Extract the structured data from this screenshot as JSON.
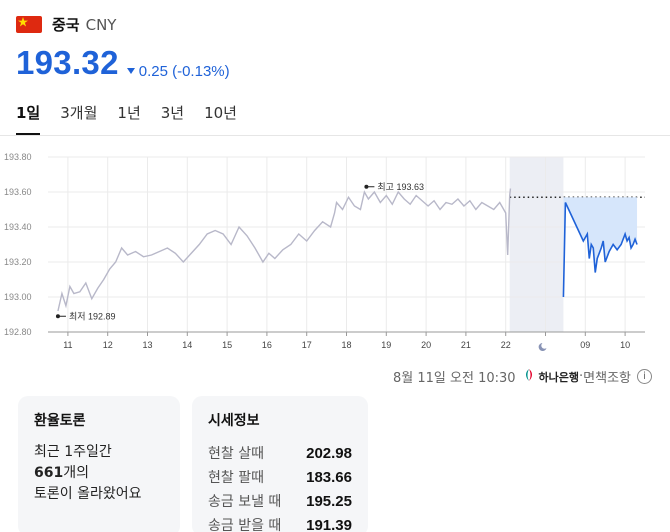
{
  "header": {
    "flag_icon": "china-flag-icon",
    "name": "중국",
    "code": "CNY"
  },
  "price": {
    "value": "193.32",
    "direction": "down",
    "change": "0.25 (-0.13%)",
    "color": "#1f62d8"
  },
  "tabs": [
    {
      "label": "1일",
      "active": true
    },
    {
      "label": "3개월",
      "active": false
    },
    {
      "label": "1년",
      "active": false
    },
    {
      "label": "3년",
      "active": false
    },
    {
      "label": "10년",
      "active": false
    }
  ],
  "chart_data": {
    "type": "line",
    "x_tick_labels": [
      "11",
      "12",
      "13",
      "14",
      "15",
      "16",
      "17",
      "18",
      "19",
      "20",
      "21",
      "22",
      "moon-icon",
      "09",
      "10"
    ],
    "y_tick_labels": [
      "193.80",
      "193.60",
      "193.40",
      "193.20",
      "193.00",
      "192.80"
    ],
    "ylim": [
      192.8,
      193.8
    ],
    "grid": true,
    "series": [
      {
        "color": "#b8b8c9",
        "points": [
          [
            10.75,
            192.92
          ],
          [
            10.85,
            193.02
          ],
          [
            10.95,
            192.95
          ],
          [
            11.05,
            193.06
          ],
          [
            11.15,
            193.02
          ],
          [
            11.3,
            193.03
          ],
          [
            11.45,
            193.08
          ],
          [
            11.6,
            192.99
          ],
          [
            11.75,
            193.05
          ],
          [
            11.9,
            193.1
          ],
          [
            12.05,
            193.16
          ],
          [
            12.2,
            193.2
          ],
          [
            12.35,
            193.28
          ],
          [
            12.5,
            193.24
          ],
          [
            12.7,
            193.26
          ],
          [
            12.9,
            193.23
          ],
          [
            13.1,
            193.24
          ],
          [
            13.3,
            193.26
          ],
          [
            13.5,
            193.28
          ],
          [
            13.7,
            193.25
          ],
          [
            13.9,
            193.2
          ],
          [
            14.1,
            193.25
          ],
          [
            14.3,
            193.3
          ],
          [
            14.5,
            193.36
          ],
          [
            14.7,
            193.38
          ],
          [
            14.9,
            193.36
          ],
          [
            15.1,
            193.3
          ],
          [
            15.3,
            193.4
          ],
          [
            15.5,
            193.35
          ],
          [
            15.7,
            193.28
          ],
          [
            15.9,
            193.2
          ],
          [
            16.05,
            193.25
          ],
          [
            16.2,
            193.22
          ],
          [
            16.4,
            193.27
          ],
          [
            16.6,
            193.3
          ],
          [
            16.8,
            193.36
          ],
          [
            17.0,
            193.32
          ],
          [
            17.2,
            193.38
          ],
          [
            17.4,
            193.43
          ],
          [
            17.6,
            193.4
          ],
          [
            17.7,
            193.48
          ],
          [
            17.75,
            193.54
          ],
          [
            17.9,
            193.5
          ],
          [
            18.05,
            193.57
          ],
          [
            18.2,
            193.52
          ],
          [
            18.35,
            193.5
          ],
          [
            18.45,
            193.6
          ],
          [
            18.55,
            193.56
          ],
          [
            18.7,
            193.6
          ],
          [
            18.85,
            193.54
          ],
          [
            19.0,
            193.58
          ],
          [
            19.15,
            193.53
          ],
          [
            19.3,
            193.6
          ],
          [
            19.45,
            193.56
          ],
          [
            19.6,
            193.53
          ],
          [
            19.75,
            193.58
          ],
          [
            19.9,
            193.55
          ],
          [
            20.05,
            193.52
          ],
          [
            20.2,
            193.55
          ],
          [
            20.35,
            193.5
          ],
          [
            20.5,
            193.54
          ],
          [
            20.65,
            193.53
          ],
          [
            20.8,
            193.56
          ],
          [
            20.95,
            193.52
          ],
          [
            21.1,
            193.55
          ],
          [
            21.25,
            193.5
          ],
          [
            21.4,
            193.54
          ],
          [
            21.55,
            193.52
          ],
          [
            21.7,
            193.5
          ],
          [
            21.85,
            193.54
          ],
          [
            22.0,
            193.48
          ],
          [
            22.05,
            193.24
          ],
          [
            22.1,
            193.58
          ],
          [
            22.12,
            193.62
          ]
        ]
      },
      {
        "color": "#1f62d8",
        "fill": "#d6e6fb",
        "points": [
          [
            23.45,
            193.0
          ],
          [
            23.5,
            193.54
          ],
          [
            23.95,
            193.32
          ],
          [
            24.05,
            193.36
          ],
          [
            24.1,
            193.22
          ],
          [
            24.15,
            193.3
          ],
          [
            24.2,
            193.28
          ],
          [
            24.25,
            193.14
          ],
          [
            24.3,
            193.22
          ],
          [
            24.4,
            193.28
          ],
          [
            24.45,
            193.32
          ],
          [
            24.5,
            193.2
          ],
          [
            24.6,
            193.26
          ],
          [
            24.7,
            193.3
          ],
          [
            24.8,
            193.27
          ],
          [
            24.9,
            193.3
          ],
          [
            25.0,
            193.36
          ],
          [
            25.05,
            193.32
          ],
          [
            25.1,
            193.34
          ],
          [
            25.15,
            193.28
          ],
          [
            25.2,
            193.3
          ],
          [
            25.25,
            193.33
          ],
          [
            25.3,
            193.3
          ]
        ]
      }
    ],
    "reference_line": 193.57,
    "shaded_x_range": [
      22.1,
      23.45
    ],
    "annotations": [
      {
        "label": "최고 193.63",
        "x": 18.5,
        "y": 193.63
      },
      {
        "label": "최저 192.89",
        "x": 10.75,
        "y": 192.89
      }
    ]
  },
  "footnote": {
    "timestamp": "8월 11일 오전 10:30",
    "bank_icon": "hana-bank-logo-icon",
    "bank": "하나은행",
    "separator": "·",
    "source": "면책조항",
    "info_icon": "info-icon"
  },
  "discussion": {
    "title": "환율토론",
    "line1": "최근 1주일간",
    "count": "661",
    "count_suffix": "개의",
    "line3": "토론이 올라왔어요"
  },
  "rates": {
    "title": "시세정보",
    "rows": [
      {
        "label": "현찰 살때",
        "value": "202.98"
      },
      {
        "label": "현찰 팔때",
        "value": "183.66"
      },
      {
        "label": "송금 보낼 때",
        "value": "195.25"
      },
      {
        "label": "송금 받을 때",
        "value": "191.39"
      }
    ]
  }
}
